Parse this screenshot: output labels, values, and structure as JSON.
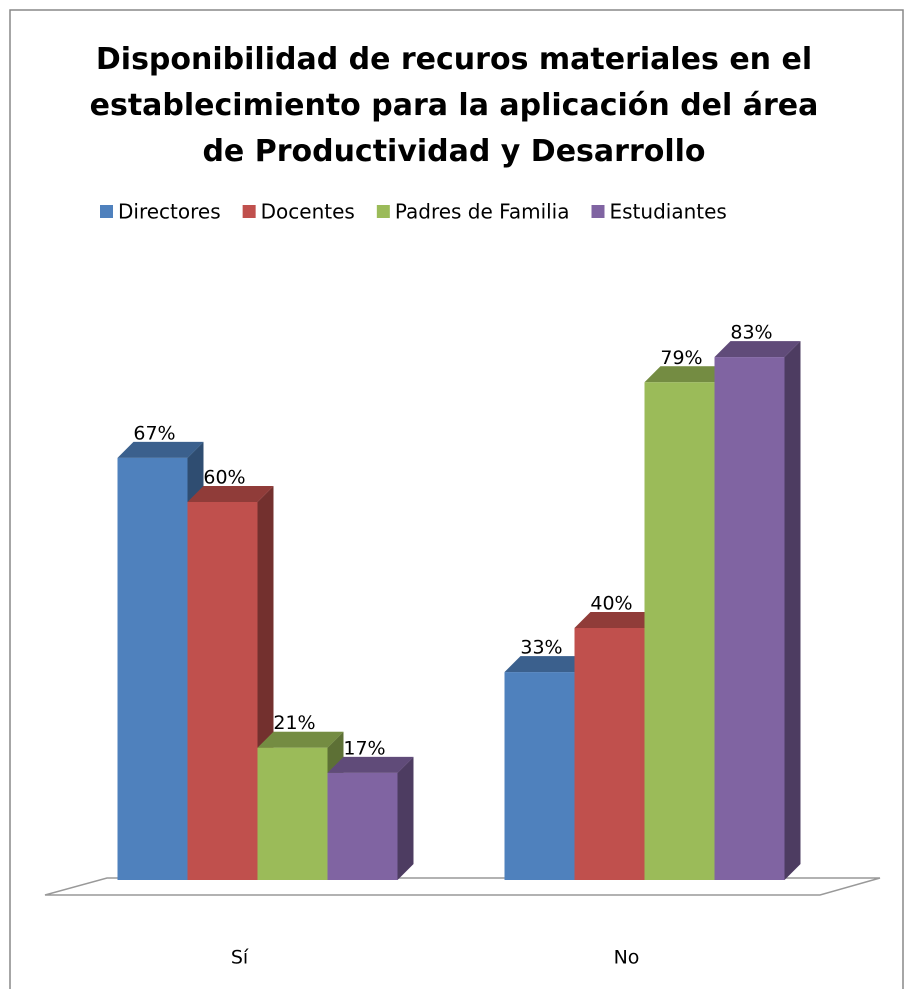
{
  "chart_data": {
    "type": "bar3d",
    "title": "Disponibilidad de recuros materiales en el establecimiento para la aplicación del área de Productividad y Desarrollo",
    "categories": [
      "Sí",
      "No"
    ],
    "series": [
      {
        "name": "Directores",
        "color": "#4f81bd",
        "values": [
          67,
          33
        ],
        "value_labels": [
          "67%",
          "33%"
        ]
      },
      {
        "name": "Docentes",
        "color": "#c0504d",
        "values": [
          60,
          40
        ],
        "value_labels": [
          "60%",
          "40%"
        ]
      },
      {
        "name": "Padres de Familia",
        "color": "#9bbb59",
        "values": [
          21,
          79
        ],
        "value_labels": [
          "21%",
          "79%"
        ]
      },
      {
        "name": "Estudiantes",
        "color": "#8064a2",
        "values": [
          17,
          83
        ],
        "value_labels": [
          "17%",
          "83%"
        ]
      }
    ],
    "ylim": [
      0,
      100
    ],
    "legend": "top"
  }
}
